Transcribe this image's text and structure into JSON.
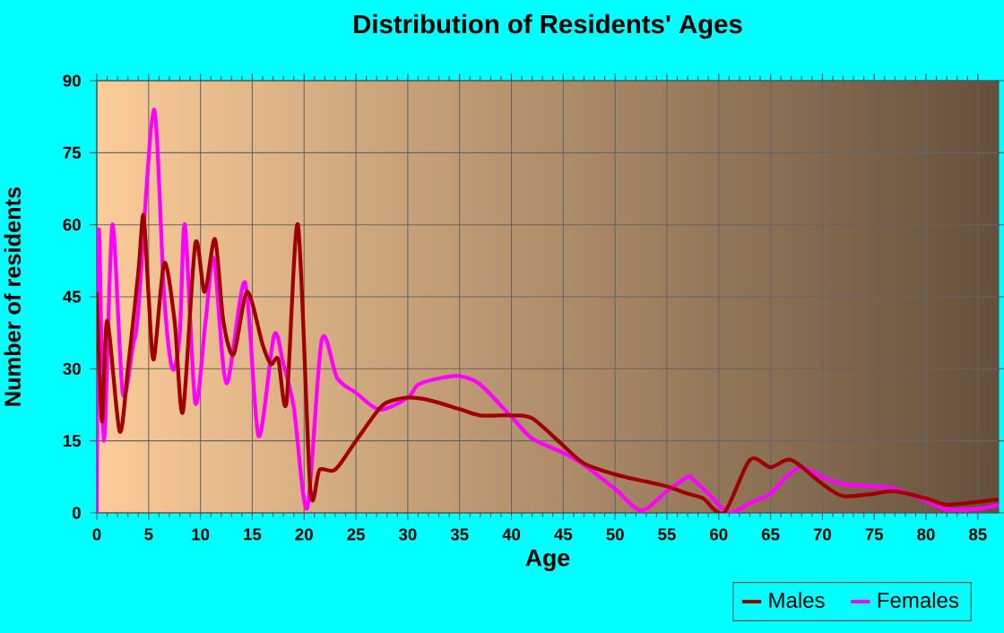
{
  "chart_data": {
    "type": "line",
    "title": "Distribution of Residents' Ages",
    "xlabel": "Age",
    "ylabel": "Number of residents",
    "xlim": [
      0,
      87
    ],
    "xticks": [
      0,
      5,
      10,
      15,
      20,
      25,
      30,
      35,
      40,
      45,
      50,
      55,
      60,
      65,
      70,
      75,
      80,
      85
    ],
    "ylim": [
      0,
      90
    ],
    "yticks": [
      0,
      15,
      30,
      45,
      60,
      75,
      90
    ],
    "grid": true,
    "legend": "bottom right",
    "marker": "none",
    "line_style": "solid",
    "series": [
      {
        "name": "Males",
        "color": "#a00000",
        "x": [
          0,
          0.5,
          1,
          2.2,
          3,
          4,
          4.5,
          5,
          5.5,
          6.5,
          7.5,
          8.3,
          9.5,
          10.4,
          11.4,
          12.2,
          13.2,
          14.5,
          16,
          16.8,
          17.5,
          18.3,
          19.4,
          20.6,
          21.5,
          23,
          25,
          27,
          28,
          30,
          32,
          35,
          37,
          40,
          42,
          45,
          47,
          50,
          53,
          55,
          57,
          58.5,
          60.5,
          63,
          65,
          67,
          70,
          72,
          75,
          77,
          80,
          82,
          85,
          87
        ],
        "values": [
          46,
          19,
          40,
          17,
          30,
          50,
          62,
          45,
          32,
          52,
          40,
          21,
          56,
          46,
          57,
          40,
          33,
          46,
          35,
          31,
          32,
          23,
          60,
          5,
          9,
          9,
          15,
          21,
          23,
          24,
          23.5,
          21.6,
          20.3,
          20.3,
          19.7,
          14,
          10.3,
          8,
          6.5,
          5.5,
          4,
          3,
          0,
          11,
          9.5,
          11,
          6,
          3.5,
          4,
          4.5,
          3,
          1.7,
          2.3,
          2.8
        ]
      },
      {
        "name": "Females",
        "color": "#ff00ff",
        "x": [
          0,
          0.2,
          0.7,
          1.5,
          2.5,
          3.5,
          4,
          5.5,
          6.5,
          7.3,
          8,
          8.5,
          9.5,
          10.5,
          11.3,
          12.5,
          14.3,
          15.6,
          17.1,
          18,
          19,
          20.3,
          21.7,
          23.2,
          25,
          27.3,
          30,
          31,
          33,
          35,
          37,
          40,
          42,
          45,
          47,
          50,
          52.5,
          55,
          57,
          57.5,
          59,
          61,
          63,
          65,
          66.5,
          68,
          70,
          72,
          75,
          77,
          80,
          82,
          85,
          87
        ],
        "values": [
          0,
          59,
          15,
          60,
          25,
          35,
          42,
          84,
          45,
          30,
          37,
          60,
          23,
          40,
          53,
          27,
          48,
          16,
          37,
          31,
          22,
          1,
          36,
          28,
          25,
          21.5,
          24,
          26.7,
          28,
          28.5,
          26.7,
          20,
          15.5,
          12.5,
          10,
          5,
          0.5,
          4.5,
          7.5,
          7,
          4,
          0,
          2,
          4,
          7.5,
          9.5,
          7.5,
          6,
          5.5,
          5,
          2.5,
          0.7,
          0.8,
          1.6
        ]
      }
    ]
  }
}
